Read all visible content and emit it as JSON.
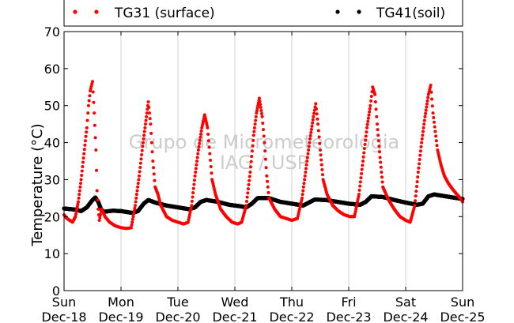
{
  "chart_data": {
    "type": "scatter",
    "ylabel": "Temperature (°C)",
    "ylim": [
      0,
      70
    ],
    "yticks": [
      0,
      10,
      20,
      30,
      40,
      50,
      60,
      70
    ],
    "xlim": [
      0,
      7
    ],
    "x_ticks": [
      {
        "day": "Sun",
        "date": "Dec-18"
      },
      {
        "day": "Mon",
        "date": "Dec-19"
      },
      {
        "day": "Tue",
        "date": "Dec-20"
      },
      {
        "day": "Wed",
        "date": "Dec-21"
      },
      {
        "day": "Thu",
        "date": "Dec-22"
      },
      {
        "day": "Fri",
        "date": "Dec-23"
      },
      {
        "day": "Sat",
        "date": "Dec-24"
      },
      {
        "day": "Sun",
        "date": "Dec-25"
      }
    ],
    "grid": "vertical",
    "legend_position": "top",
    "watermark": [
      "Grupo de Micrometeorologia",
      "IAG / USP"
    ],
    "series": [
      {
        "name": "TG31 (surface)",
        "color": "#ff0000",
        "marker": "dot",
        "points": [
          [
            0.0,
            20.5
          ],
          [
            0.05,
            19.5
          ],
          [
            0.1,
            19.0
          ],
          [
            0.15,
            18.5
          ],
          [
            0.2,
            20.0
          ],
          [
            0.25,
            24.0
          ],
          [
            0.3,
            30.0
          ],
          [
            0.35,
            37.0
          ],
          [
            0.4,
            44.0
          ],
          [
            0.43,
            50.0
          ],
          [
            0.46,
            54.0
          ],
          [
            0.5,
            56.5
          ],
          [
            0.53,
            48.0
          ],
          [
            0.56,
            38.0
          ],
          [
            0.58,
            27.0
          ],
          [
            0.6,
            22.0
          ],
          [
            0.62,
            19.0
          ],
          [
            0.66,
            22.0
          ],
          [
            0.72,
            20.0
          ],
          [
            0.8,
            18.5
          ],
          [
            0.9,
            17.5
          ],
          [
            1.0,
            17.0
          ],
          [
            1.1,
            16.8
          ],
          [
            1.18,
            17.0
          ],
          [
            1.25,
            23.0
          ],
          [
            1.32,
            31.0
          ],
          [
            1.38,
            39.0
          ],
          [
            1.43,
            45.0
          ],
          [
            1.48,
            51.0
          ],
          [
            1.52,
            45.0
          ],
          [
            1.56,
            35.0
          ],
          [
            1.6,
            28.0
          ],
          [
            1.65,
            26.0
          ],
          [
            1.7,
            23.0
          ],
          [
            1.8,
            20.0
          ],
          [
            1.9,
            19.0
          ],
          [
            2.0,
            18.5
          ],
          [
            2.1,
            18.0
          ],
          [
            2.18,
            18.5
          ],
          [
            2.24,
            23.0
          ],
          [
            2.3,
            31.0
          ],
          [
            2.36,
            38.0
          ],
          [
            2.42,
            44.0
          ],
          [
            2.47,
            47.5
          ],
          [
            2.52,
            44.0
          ],
          [
            2.56,
            37.0
          ],
          [
            2.6,
            30.0
          ],
          [
            2.66,
            26.0
          ],
          [
            2.75,
            22.0
          ],
          [
            2.85,
            20.0
          ],
          [
            2.95,
            18.5
          ],
          [
            3.05,
            18.0
          ],
          [
            3.12,
            18.5
          ],
          [
            3.2,
            23.0
          ],
          [
            3.27,
            32.0
          ],
          [
            3.33,
            42.0
          ],
          [
            3.38,
            48.0
          ],
          [
            3.43,
            52.0
          ],
          [
            3.48,
            47.0
          ],
          [
            3.52,
            40.0
          ],
          [
            3.56,
            31.0
          ],
          [
            3.6,
            25.0
          ],
          [
            3.7,
            22.0
          ],
          [
            3.8,
            20.0
          ],
          [
            3.9,
            19.5
          ],
          [
            4.0,
            19.0
          ],
          [
            4.1,
            19.5
          ],
          [
            4.18,
            25.0
          ],
          [
            4.25,
            33.0
          ],
          [
            4.32,
            41.0
          ],
          [
            4.38,
            47.0
          ],
          [
            4.42,
            50.5
          ],
          [
            4.46,
            45.0
          ],
          [
            4.5,
            38.0
          ],
          [
            4.55,
            30.0
          ],
          [
            4.62,
            26.0
          ],
          [
            4.72,
            23.0
          ],
          [
            4.82,
            21.5
          ],
          [
            4.92,
            20.5
          ],
          [
            5.02,
            20.0
          ],
          [
            5.1,
            20.0
          ],
          [
            5.18,
            26.0
          ],
          [
            5.25,
            35.0
          ],
          [
            5.32,
            44.0
          ],
          [
            5.38,
            50.0
          ],
          [
            5.42,
            55.0
          ],
          [
            5.46,
            53.0
          ],
          [
            5.5,
            45.0
          ],
          [
            5.55,
            36.0
          ],
          [
            5.6,
            28.0
          ],
          [
            5.7,
            24.5
          ],
          [
            5.8,
            22.0
          ],
          [
            5.9,
            20.0
          ],
          [
            6.0,
            19.0
          ],
          [
            6.08,
            18.5
          ],
          [
            6.16,
            23.0
          ],
          [
            6.22,
            32.0
          ],
          [
            6.28,
            40.0
          ],
          [
            6.34,
            47.0
          ],
          [
            6.4,
            53.0
          ],
          [
            6.44,
            55.5
          ],
          [
            6.48,
            48.0
          ],
          [
            6.52,
            43.0
          ],
          [
            6.56,
            38.0
          ],
          [
            6.62,
            34.0
          ],
          [
            6.68,
            31.0
          ],
          [
            6.75,
            29.0
          ],
          [
            6.82,
            27.5
          ],
          [
            6.9,
            26.0
          ],
          [
            6.96,
            25.0
          ],
          [
            7.0,
            24.0
          ]
        ]
      },
      {
        "name": "TG41(soil)",
        "color": "#000000",
        "marker": "dot",
        "points": [
          [
            0.0,
            22.2
          ],
          [
            0.2,
            21.9
          ],
          [
            0.3,
            21.5
          ],
          [
            0.4,
            22.5
          ],
          [
            0.5,
            24.5
          ],
          [
            0.55,
            25.2
          ],
          [
            0.6,
            24.0
          ],
          [
            0.65,
            22.0
          ],
          [
            0.7,
            21.3
          ],
          [
            0.85,
            21.6
          ],
          [
            1.0,
            21.5
          ],
          [
            1.2,
            21.0
          ],
          [
            1.3,
            21.5
          ],
          [
            1.4,
            23.5
          ],
          [
            1.48,
            24.5
          ],
          [
            1.6,
            23.8
          ],
          [
            1.8,
            23.0
          ],
          [
            2.0,
            22.5
          ],
          [
            2.2,
            22.0
          ],
          [
            2.3,
            22.5
          ],
          [
            2.4,
            24.0
          ],
          [
            2.5,
            24.5
          ],
          [
            2.7,
            24.0
          ],
          [
            2.9,
            23.2
          ],
          [
            3.1,
            22.8
          ],
          [
            3.2,
            22.5
          ],
          [
            3.3,
            23.5
          ],
          [
            3.4,
            25.0
          ],
          [
            3.6,
            25.0
          ],
          [
            3.8,
            24.0
          ],
          [
            4.0,
            23.5
          ],
          [
            4.2,
            23.0
          ],
          [
            4.3,
            23.8
          ],
          [
            4.4,
            24.6
          ],
          [
            4.6,
            24.5
          ],
          [
            4.8,
            24.0
          ],
          [
            5.0,
            23.5
          ],
          [
            5.2,
            23.2
          ],
          [
            5.3,
            24.0
          ],
          [
            5.4,
            25.5
          ],
          [
            5.6,
            25.3
          ],
          [
            5.8,
            24.5
          ],
          [
            6.0,
            23.8
          ],
          [
            6.2,
            23.2
          ],
          [
            6.3,
            23.5
          ],
          [
            6.4,
            25.5
          ],
          [
            6.5,
            26.0
          ],
          [
            6.7,
            25.5
          ],
          [
            6.9,
            25.0
          ],
          [
            7.0,
            24.8
          ]
        ]
      }
    ]
  }
}
